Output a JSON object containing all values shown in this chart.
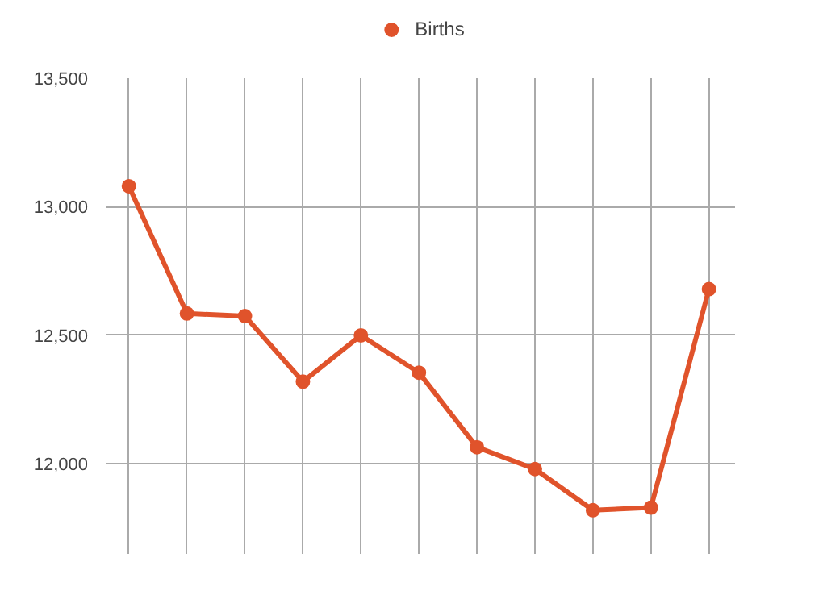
{
  "chart_data": {
    "type": "line",
    "categories": [
      null,
      null,
      null,
      null,
      null,
      null,
      null,
      null,
      null,
      null,
      null
    ],
    "series": [
      {
        "name": "Births",
        "color": "#e0532b",
        "values": [
          13080,
          12585,
          12575,
          12320,
          12500,
          12355,
          12065,
          11980,
          11820,
          11830,
          12680
        ]
      }
    ],
    "ylim": [
      11650,
      13500
    ],
    "yticks": [
      {
        "value": 12000,
        "label": "12,000"
      },
      {
        "value": 12500,
        "label": "12,500"
      },
      {
        "value": 13000,
        "label": "13,000"
      },
      {
        "value": 13500,
        "label": "13,500"
      }
    ],
    "grid": true,
    "legend": "top",
    "marker": "circle",
    "line_style": "solid",
    "tick_labels": "y"
  }
}
